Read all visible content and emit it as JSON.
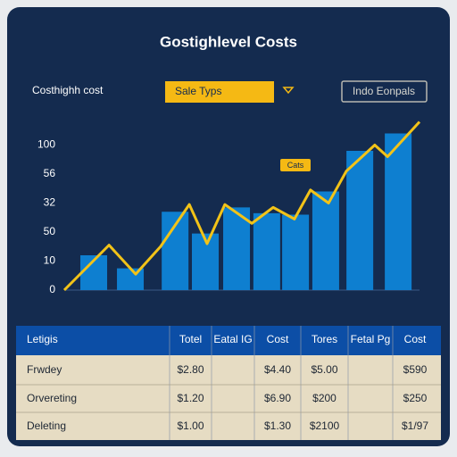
{
  "title": "Gostighlevel Costs",
  "controls": {
    "label": "Costhighh cost",
    "dropdown": "Sale Typs",
    "button": "Indo Eonpals"
  },
  "chart_data": {
    "type": "bar",
    "xlim": [
      0,
      100
    ],
    "ylim": [
      0,
      120
    ],
    "yticks": [
      0,
      {
        "value": 20,
        "label": "10"
      },
      {
        "value": 40,
        "label": "50"
      },
      {
        "value": 60,
        "label": "32"
      },
      {
        "value": 80,
        "label": "56"
      },
      100
    ],
    "annotation": "Cats",
    "series": [
      {
        "type": "bar",
        "color": "#0e7fd0",
        "x": [
          8.3,
          18.6,
          31.2,
          39.7,
          48.5,
          57,
          65.1,
          73.6,
          83.2,
          94
        ],
        "values": [
          24,
          15,
          54,
          39,
          57,
          53,
          52,
          68,
          96,
          108
        ]
      },
      {
        "type": "line",
        "color": "#f2c318",
        "x": [
          0,
          12.6,
          20.1,
          27.1,
          35.2,
          40.2,
          45.2,
          52.8,
          58.8,
          64.8,
          69.3,
          74.4,
          79.4,
          87.4,
          91,
          100
        ],
        "values": [
          0,
          31,
          11,
          30,
          59,
          32,
          59,
          46,
          57,
          49,
          69,
          60,
          82,
          100,
          92,
          116
        ]
      }
    ]
  },
  "table": {
    "header": [
      "Letigis",
      "Totel",
      "Eatal IG",
      "Cost",
      "Tores",
      "Fetal Pg",
      "Cost"
    ],
    "rows": [
      [
        "Frwdey",
        "$2.80",
        null,
        "$4.40",
        "$5.00",
        null,
        "$590"
      ],
      [
        "Orvereting",
        "$1.20",
        null,
        "$6.90",
        "$200",
        null,
        "$250"
      ],
      [
        "Deleting",
        "$1.00",
        null,
        "$1.30",
        "$2100",
        null,
        "$1/97"
      ]
    ]
  }
}
